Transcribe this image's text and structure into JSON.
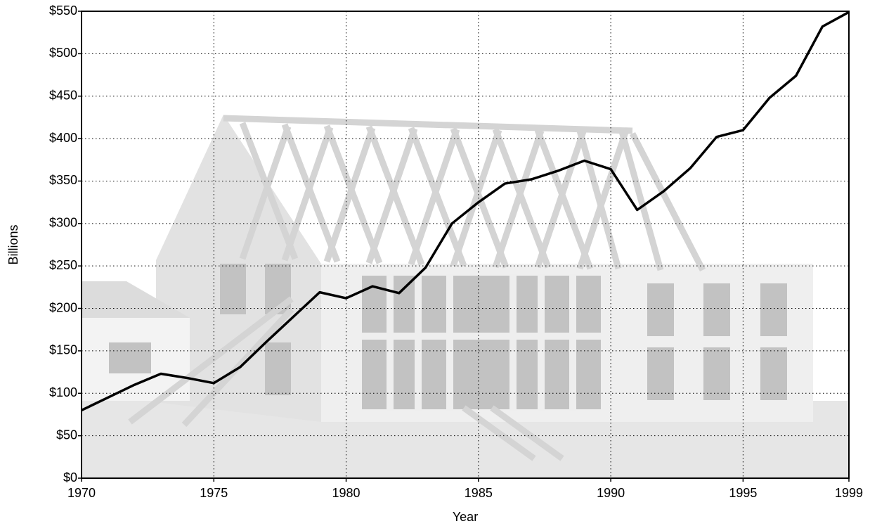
{
  "chart_data": {
    "type": "line",
    "x_label": "Year",
    "y_label": "Billions",
    "x": [
      1970,
      1971,
      1972,
      1973,
      1974,
      1975,
      1976,
      1977,
      1978,
      1979,
      1980,
      1981,
      1982,
      1983,
      1984,
      1985,
      1986,
      1987,
      1988,
      1989,
      1990,
      1991,
      1992,
      1993,
      1994,
      1995,
      1996,
      1997,
      1998,
      1999
    ],
    "values": [
      80,
      95,
      110,
      123,
      118,
      112,
      131,
      161,
      190,
      219,
      212,
      226,
      218,
      248,
      300,
      325,
      347,
      352,
      362,
      374,
      364,
      316,
      338,
      365,
      402,
      410,
      448,
      474,
      532,
      549
    ],
    "color": "#000000",
    "xlim": [
      1970,
      1999
    ],
    "xticks": [
      1970,
      1975,
      1980,
      1985,
      1990,
      1995,
      1999
    ],
    "ylim": [
      0,
      550
    ],
    "yticks": [
      {
        "value": 0,
        "label": "$0"
      },
      {
        "value": 50,
        "label": "$50"
      },
      {
        "value": 100,
        "label": "$100"
      },
      {
        "value": 150,
        "label": "$150"
      },
      {
        "value": 200,
        "label": "$200"
      },
      {
        "value": 250,
        "label": "$250"
      },
      {
        "value": 300,
        "label": "$300"
      },
      {
        "value": 350,
        "label": "$350"
      },
      {
        "value": 400,
        "label": "$400"
      },
      {
        "value": 450,
        "label": "$450"
      },
      {
        "value": 500,
        "label": "$500"
      },
      {
        "value": 550,
        "label": "$550"
      }
    ],
    "grid": true
  }
}
